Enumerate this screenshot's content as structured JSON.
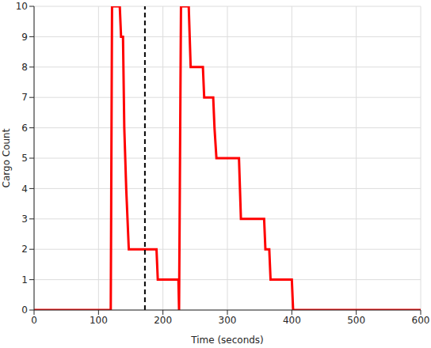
{
  "chart_data": {
    "type": "line",
    "x_label": "Time (seconds)",
    "y_label": "Cargo Count",
    "x": [
      0,
      119,
      121,
      133,
      135,
      138,
      140,
      143,
      147,
      190,
      192,
      224,
      225,
      228,
      240,
      243,
      262,
      264,
      278,
      280,
      283,
      318,
      321,
      357,
      359,
      365,
      367,
      400,
      402,
      600
    ],
    "values": [
      0,
      0,
      10,
      10,
      9,
      9,
      6,
      4,
      2,
      2,
      1,
      1,
      0,
      10,
      10,
      8,
      8,
      7,
      7,
      6,
      5,
      5,
      3,
      3,
      2,
      2,
      1,
      1,
      0,
      0
    ],
    "color": "#ff0000",
    "line_style": "solid",
    "xlim": [
      0,
      600
    ],
    "xticks": [
      0,
      100,
      200,
      300,
      400,
      500,
      600
    ],
    "ylim": [
      0,
      10
    ],
    "yticks": [
      0,
      1,
      2,
      3,
      4,
      5,
      6,
      7,
      8,
      9,
      10
    ],
    "grid": true,
    "reference_lines": [
      {
        "x": 172,
        "color": "#000000",
        "line_style": "dashed"
      }
    ]
  }
}
